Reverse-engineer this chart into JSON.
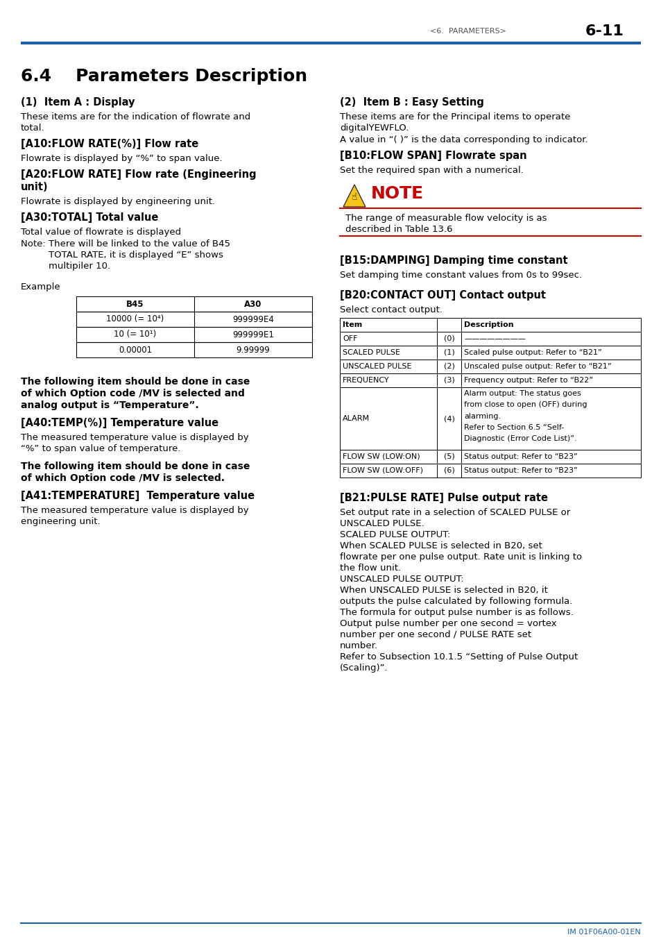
{
  "page_header_left": "<6.  PARAMETERS>",
  "page_header_right": "6-11",
  "header_line_color": "#1a5fa8",
  "bg_color": "#ffffff",
  "text_color": "#000000",
  "section_title": "6.4    Parameters Description",
  "footer_text": "IM 01F06A00-01EN",
  "footer_color": "#1a5fa8",
  "note_triangle_color": "#f0c020",
  "note_text_color": "#cc0000",
  "note_line_color": "#cc0000"
}
